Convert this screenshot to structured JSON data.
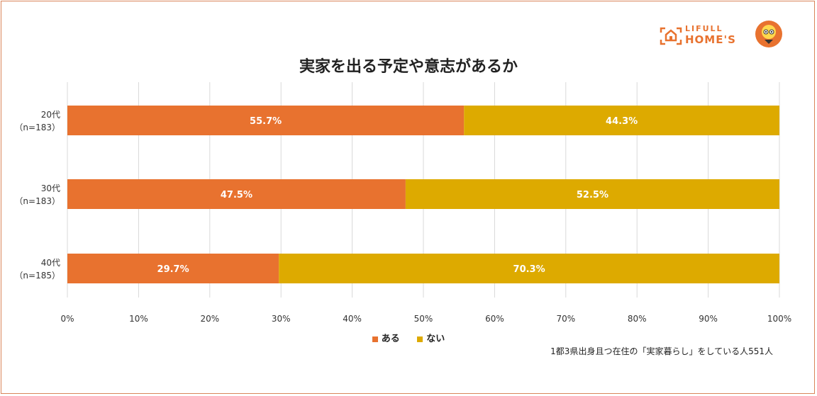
{
  "colors": {
    "aru": "#e8722f",
    "nai": "#ddaa00",
    "frame": "#d9855a",
    "grid": "#d9d9d9"
  },
  "logo": {
    "small": "LIFULL",
    "big": "HOME'S",
    "icon": "house-icon",
    "mascot": "mascot-icon"
  },
  "chart_data": {
    "type": "bar",
    "orientation": "horizontal-stacked-100",
    "title": "実家を出る予定や意志があるか",
    "categories": [
      "20代\n（n=183）",
      "30代\n（n=183）",
      "40代\n（n=185）"
    ],
    "category_lines": [
      [
        "20代",
        "（n=183）"
      ],
      [
        "30代",
        "（n=183）"
      ],
      [
        "40代",
        "（n=185）"
      ]
    ],
    "series": [
      {
        "name": "ある",
        "values": [
          55.7,
          47.5,
          29.7
        ],
        "labels": [
          "55.7%",
          "47.5%",
          "29.7%"
        ]
      },
      {
        "name": "ない",
        "values": [
          44.3,
          52.5,
          70.3
        ],
        "labels": [
          "44.3%",
          "52.5%",
          "70.3%"
        ]
      }
    ],
    "xlim": [
      0,
      100
    ],
    "xticks": [
      "0%",
      "10%",
      "20%",
      "30%",
      "40%",
      "50%",
      "60%",
      "70%",
      "80%",
      "90%",
      "100%"
    ],
    "grid": true,
    "legend": "bottom"
  },
  "footnote": "1都3県出身且つ在住の「実家暮らし」をしている人551人"
}
